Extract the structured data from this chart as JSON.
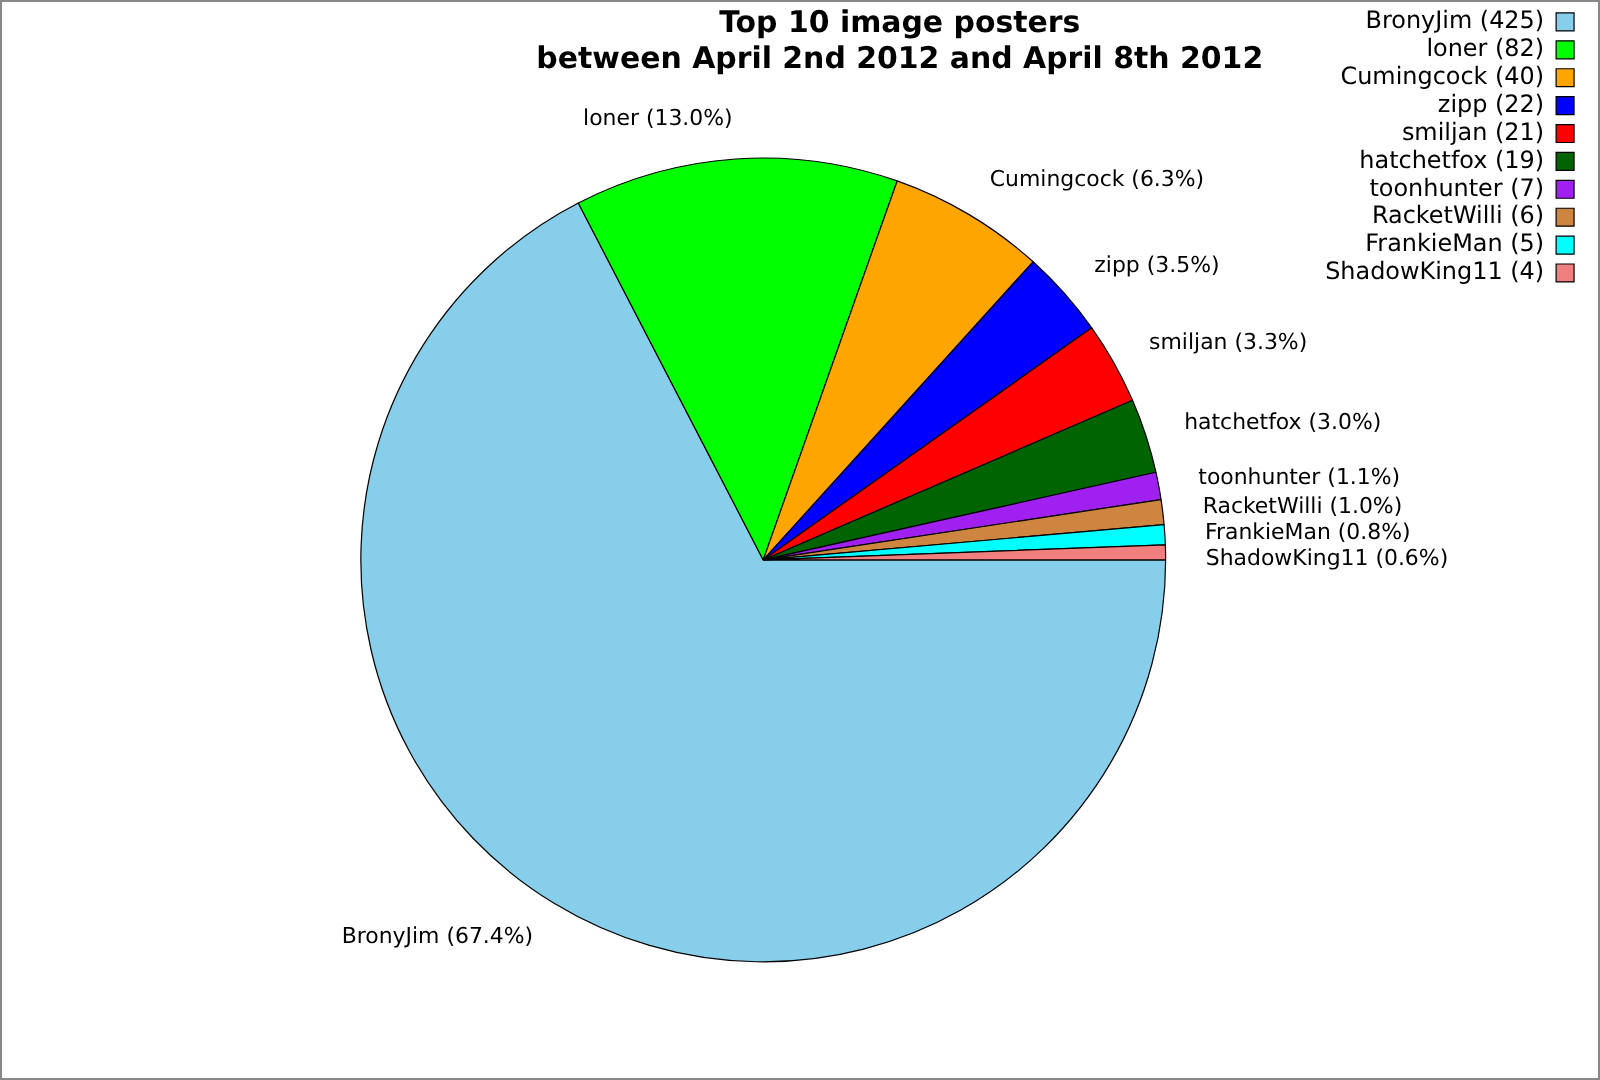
{
  "chart_data": {
    "type": "pie",
    "title": "Top 10 image posters\nbetween April 2nd 2012 and April 8th 2012",
    "categories": [
      "BronyJim (425)",
      "loner (82)",
      "Cumingcock (40)",
      "zipp (22)",
      "smiljan (21)",
      "hatchetfox (19)",
      "toonhunter (7)",
      "RacketWilli (6)",
      "FrankieMan (5)",
      "ShadowKing11 (4)"
    ],
    "values": [
      67.4,
      13.0,
      6.3,
      3.5,
      3.3,
      3.0,
      1.1,
      1.0,
      0.8,
      0.6
    ],
    "value_labels": [
      "BronyJim (67.4%)",
      "loner (13.0%)",
      "Cumingcock (6.3%)",
      "zipp (3.5%)",
      "smiljan (3.3%)",
      "hatchetfox (3.0%)",
      "toonhunter (1.1%)",
      "RacketWilli (1.0%)",
      "FrankieMan (0.8%)",
      "ShadowKing11 (0.6%)"
    ],
    "colors": [
      "#87ceeb",
      "#00ff00",
      "#ffa500",
      "#0000ff",
      "#ff0000",
      "#006400",
      "#a020f0",
      "#cd853f",
      "#00ffff",
      "#f08080"
    ],
    "legend": "top right"
  }
}
